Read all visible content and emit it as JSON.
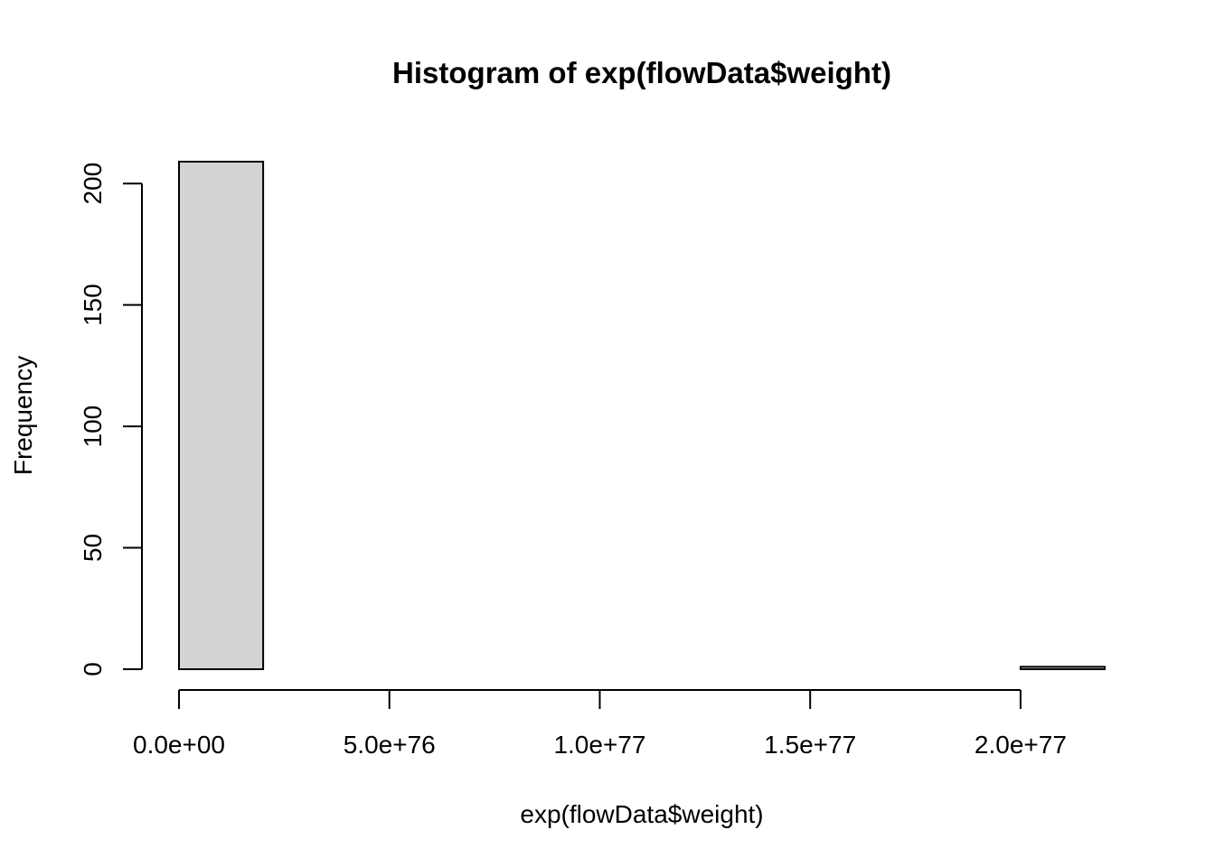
{
  "chart_data": {
    "type": "bar",
    "title": "Histogram of exp(flowData$weight)",
    "xlabel": "exp(flowData$weight)",
    "ylabel": "Frequency",
    "bin_width": 2e+76,
    "bins": [
      {
        "start": 0,
        "end": 2e+76,
        "count": 209
      },
      {
        "start": 2e+76,
        "end": 4e+76,
        "count": 0
      },
      {
        "start": 4e+76,
        "end": 6e+76,
        "count": 0
      },
      {
        "start": 6e+76,
        "end": 8e+76,
        "count": 0
      },
      {
        "start": 8e+76,
        "end": 1e+77,
        "count": 0
      },
      {
        "start": 1e+77,
        "end": 1.2e+77,
        "count": 0
      },
      {
        "start": 1.2e+77,
        "end": 1.4e+77,
        "count": 0
      },
      {
        "start": 1.4e+77,
        "end": 1.6e+77,
        "count": 0
      },
      {
        "start": 1.6e+77,
        "end": 1.8e+77,
        "count": 0
      },
      {
        "start": 1.8e+77,
        "end": 2e+77,
        "count": 0
      },
      {
        "start": 2e+77,
        "end": 2.2e+77,
        "count": 1
      }
    ],
    "xlim": [
      0,
      2.2e+77
    ],
    "ylim": [
      0,
      209
    ],
    "x_ticks": [
      {
        "value": 0,
        "label": "0.0e+00"
      },
      {
        "value": 5e+76,
        "label": "5.0e+76"
      },
      {
        "value": 1e+77,
        "label": "1.0e+77"
      },
      {
        "value": 1.5e+77,
        "label": "1.5e+77"
      },
      {
        "value": 2e+77,
        "label": "2.0e+77"
      }
    ],
    "y_ticks": [
      {
        "value": 0,
        "label": "0"
      },
      {
        "value": 50,
        "label": "50"
      },
      {
        "value": 100,
        "label": "100"
      },
      {
        "value": 150,
        "label": "150"
      },
      {
        "value": 200,
        "label": "200"
      }
    ],
    "bar_fill": "#d3d3d3",
    "bar_stroke": "#000000",
    "grid": false,
    "legend": "none"
  }
}
